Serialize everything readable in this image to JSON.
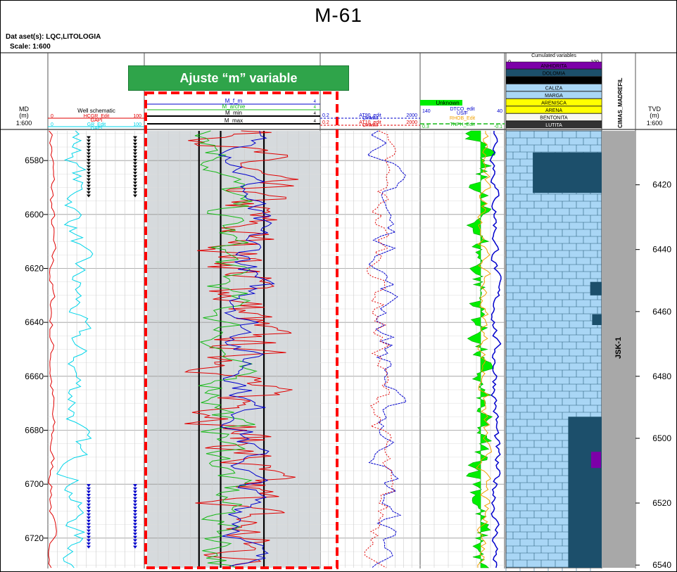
{
  "header": {
    "title": "M-61",
    "dataset_label": "Dat aset(s):",
    "dataset_value": "LQC,LITOLOGIA",
    "scale_label": "Scale:",
    "scale_value": "1:600",
    "annotation": "Ajuste “m” variable"
  },
  "colors": {
    "red": "#e00000",
    "cyan": "#00d4e8",
    "green": "#16b816",
    "blue": "#0000cc",
    "black": "#000000",
    "orange": "#f0a000",
    "lime": "#00ee00",
    "limestone": "#a9d6f5",
    "dolomite": "#1c4f6b",
    "anhydrite": "#7c00a8",
    "sand": "#ffff00",
    "grey": "#a8a8a8",
    "track_bg": "#d6dadd",
    "highlight": "#ff0000",
    "annotation_bg": "#2fa44a"
  },
  "chart_data": {
    "type": "line",
    "title": "M-61",
    "depth_axis": {
      "md_label": "MD",
      "md_unit": "(m)",
      "md_scale": "1:600",
      "md_range": [
        6569,
        6731
      ],
      "md_ticks": [
        6580,
        6600,
        6620,
        6640,
        6660,
        6680,
        6700,
        6720
      ],
      "tvd_label": "TVD",
      "tvd_unit": "(m)",
      "tvd_scale": "1:600",
      "tvd_ticks": [
        6420,
        6440,
        6460,
        6480,
        6500,
        6520,
        6540
      ],
      "tvd_tick_md": [
        6589,
        6613,
        6636,
        6660,
        6683,
        6707,
        6730
      ]
    },
    "tracks": [
      {
        "name": "Well schematic",
        "curves": [
          {
            "label": "HCGR_Edit",
            "min": "0",
            "max": "100",
            "color": "#e00000"
          },
          {
            "label": "GAPI",
            "min": "",
            "max": "",
            "color": "#e00000"
          },
          {
            "label": "GR_Edit",
            "min": "0",
            "max": "100",
            "color": "#00d4e8"
          },
          {
            "label": "GAPI",
            "min": "",
            "max": "",
            "color": "#00d4e8"
          }
        ],
        "markers": [
          {
            "type": "black-triangles",
            "top_md": 6571,
            "base_md": 6593
          },
          {
            "type": "blue-triangles",
            "top_md": 6700,
            "base_md": 6723
          }
        ]
      },
      {
        "name": "m variable",
        "curves": [
          {
            "label": "M_f_m",
            "min": "",
            "max": "4",
            "color": "#0000cc"
          },
          {
            "label": "M_archie",
            "min": "",
            "max": "4",
            "color": "#16b816"
          },
          {
            "label": "M_min",
            "min": "",
            "max": "4",
            "color": "#000000"
          },
          {
            "label": "M_max",
            "min": "",
            "max": "4",
            "color": "#000000"
          }
        ],
        "m_min": 1.7,
        "m_max": 2.7,
        "xlim": [
          0,
          4
        ]
      },
      {
        "name": "resistivity",
        "curves": [
          {
            "label": "AT90_edit",
            "min": "0.2",
            "max": "2000",
            "color": "#0000cc"
          },
          {
            "label": "OHMM",
            "min": "",
            "max": "",
            "color": "#0000cc"
          },
          {
            "label": "AT10_edit",
            "min": "0.2",
            "max": "2000",
            "color": "#e00000"
          },
          {
            "label": "OHMM",
            "min": "",
            "max": "",
            "color": "#e00000"
          }
        ],
        "scale": "log"
      },
      {
        "name": "porosity",
        "curves": [
          {
            "label": "Unknown",
            "min": "",
            "max": "",
            "color": "#00ee00"
          },
          {
            "label": "DTCO_edit",
            "min": "140",
            "max": "40",
            "color": "#0000cc"
          },
          {
            "label": "US/F",
            "min": "",
            "max": "",
            "color": "#0000cc"
          },
          {
            "label": "RHOB_Edit",
            "min": "",
            "max": "",
            "color": "#f0a000"
          },
          {
            "label": "TNPH_Edit",
            "min": "0.3",
            "max": "-0.1",
            "color": "#16b816"
          }
        ]
      },
      {
        "name": "Cumulated variables",
        "xlim": [
          "0",
          "100"
        ],
        "legend": [
          "ANHIDRITA",
          "DOLOMIA",
          "",
          "CALIZA",
          "MARGA",
          "ARENISCA",
          "ARENA",
          "BENTONITA",
          "LUTITA"
        ],
        "background": "CALIZA",
        "dolomite_intervals_md": [
          [
            6577,
            6592
          ],
          [
            6625,
            6630
          ],
          [
            6637,
            6641
          ],
          [
            6675,
            6731
          ]
        ],
        "anhydrite_interval_md": [
          6688,
          6694
        ]
      },
      {
        "name": "CIMAS_MADREFIL",
        "formation": "JSK-1"
      }
    ]
  }
}
